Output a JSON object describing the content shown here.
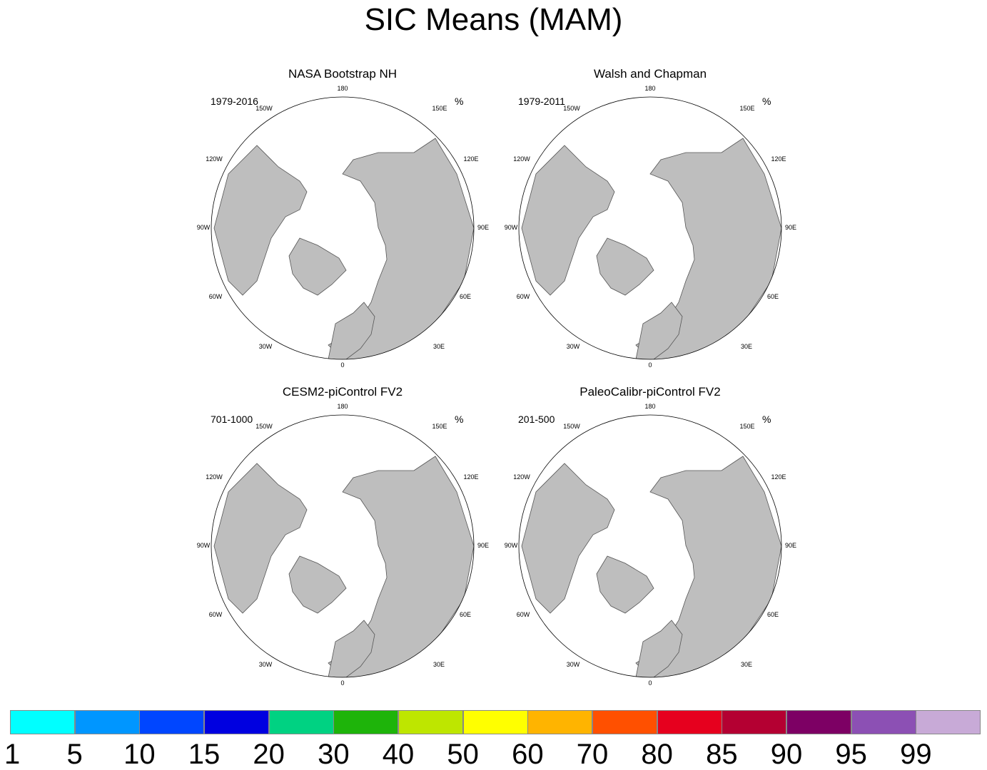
{
  "title": "SIC Means (MAM)",
  "panels": [
    {
      "title": "NASA Bootstrap NH",
      "period": "1979-2016",
      "units": "%"
    },
    {
      "title": "Walsh and Chapman",
      "period": "1979-2011",
      "units": "%"
    },
    {
      "title": "CESM2-piControl FV2",
      "period": "701-1000",
      "units": "%"
    },
    {
      "title": "PaleoCalibr-piControl FV2",
      "period": "201-500",
      "units": "%"
    }
  ],
  "lon_labels": [
    "180",
    "150E",
    "120E",
    "90E",
    "60E",
    "30E",
    "0",
    "30W",
    "60W",
    "90W",
    "120W",
    "150W"
  ],
  "colorbar": {
    "labels": [
      "1",
      "5",
      "10",
      "15",
      "20",
      "30",
      "40",
      "50",
      "60",
      "70",
      "80",
      "85",
      "90",
      "95",
      "99"
    ],
    "colors": [
      "#00ffff",
      "#0096ff",
      "#0046ff",
      "#0000e0",
      "#00d282",
      "#1eb40a",
      "#bee600",
      "#ffff00",
      "#ffb400",
      "#ff5000",
      "#e6001e",
      "#b40032",
      "#7d0064",
      "#8c50b4",
      "#c8aad7"
    ]
  },
  "colors": {
    "land": "#bebebe",
    "ocean": "#ffffff",
    "coast": "#555555"
  }
}
